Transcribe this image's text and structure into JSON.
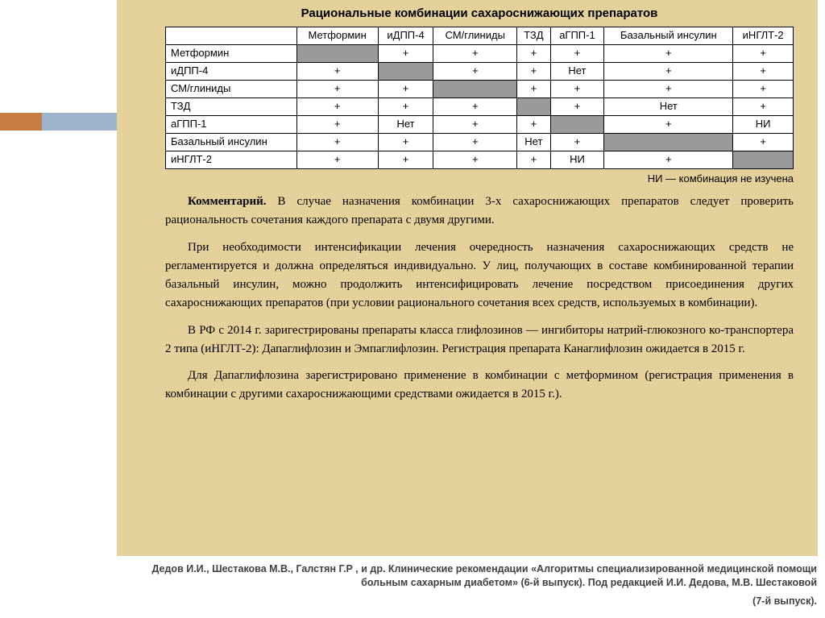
{
  "title": "Рациональные комбинации сахароснижающих препаратов",
  "table": {
    "columns": [
      "",
      "Метформин",
      "иДПП-4",
      "СМ/глиниды",
      "ТЗД",
      "аГПП-1",
      "Базальный инсулин",
      "иНГЛТ-2"
    ],
    "rows": [
      {
        "label": "Метформин",
        "cells": [
          "SHADE",
          "+",
          "+",
          "+",
          "+",
          "+",
          "+"
        ]
      },
      {
        "label": "иДПП-4",
        "cells": [
          "+",
          "SHADE",
          "+",
          "+",
          "Нет",
          "+",
          "+"
        ]
      },
      {
        "label": "СМ/глиниды",
        "cells": [
          "+",
          "+",
          "SHADE",
          "+",
          "+",
          "+",
          "+"
        ]
      },
      {
        "label": "ТЗД",
        "cells": [
          "+",
          "+",
          "+",
          "SHADE",
          "+",
          "Нет",
          "+"
        ]
      },
      {
        "label": "аГПП-1",
        "cells": [
          "+",
          "Нет",
          "+",
          "+",
          "SHADE",
          "+",
          "НИ"
        ]
      },
      {
        "label": "Базальный инсулин",
        "cells": [
          "+",
          "+",
          "+",
          "Нет",
          "+",
          "SHADE",
          "+"
        ]
      },
      {
        "label": "иНГЛТ-2",
        "cells": [
          "+",
          "+",
          "+",
          "+",
          "НИ",
          "+",
          "SHADE"
        ]
      }
    ],
    "shaded_color": "#9a9a9a",
    "border_color": "#000000",
    "bg_color": "#ffffff",
    "font_size": 13
  },
  "legend": "НИ — комбинация не изучена",
  "paragraphs": {
    "p1_bold": "Комментарий.",
    "p1_rest": " В случае назначения комбинации 3-х сахароснижающих препаратов следует проверить рациональность сочетания каждого препарата с двумя другими.",
    "p2": "При необходимости интенсификации лечения очередность назначения сахароснижающих средств не регламентируется и должна определяться индивидуально. У лиц, получающих в составе комбинированной терапии базальный инсулин, можно продолжить интенсифицировать лечение посредством присоединения других сахароснижающих препаратов (при условии рационального сочетания всех средств, используемых в комбинации).",
    "p3": "В РФ с 2014 г. заригестрированы препараты класса глифлозинов — ингибиторы натрий-глюкозного ко-транспортера 2 типа (иНГЛТ-2): Дапаглифлозин и Эмпаглифлозин. Регистрация препарата Канаглифлозин ожидается в 2015 г.",
    "p4": "Для Дапаглифлозина зарегистрировано применение в комбинации с метформином (регистрация применения в комбинации с другими сахароснижающими средствами ожидается в 2015 г.)."
  },
  "citation": {
    "line1": "Дедов И.И., Шестакова М.В., Галстян Г.Р , и др. Клинические рекомендации «Алгоритмы специализированной медицинской помощи больным сахарным диабетом» (6-й выпуск). Под редакцией И.И. Дедова, М.В. Шестаковой",
    "line2": "(7-й выпуск)."
  },
  "accent_colors": {
    "orange": "#c97c42",
    "blue": "#9db4cc"
  },
  "panel_bg": "#e7d39e"
}
